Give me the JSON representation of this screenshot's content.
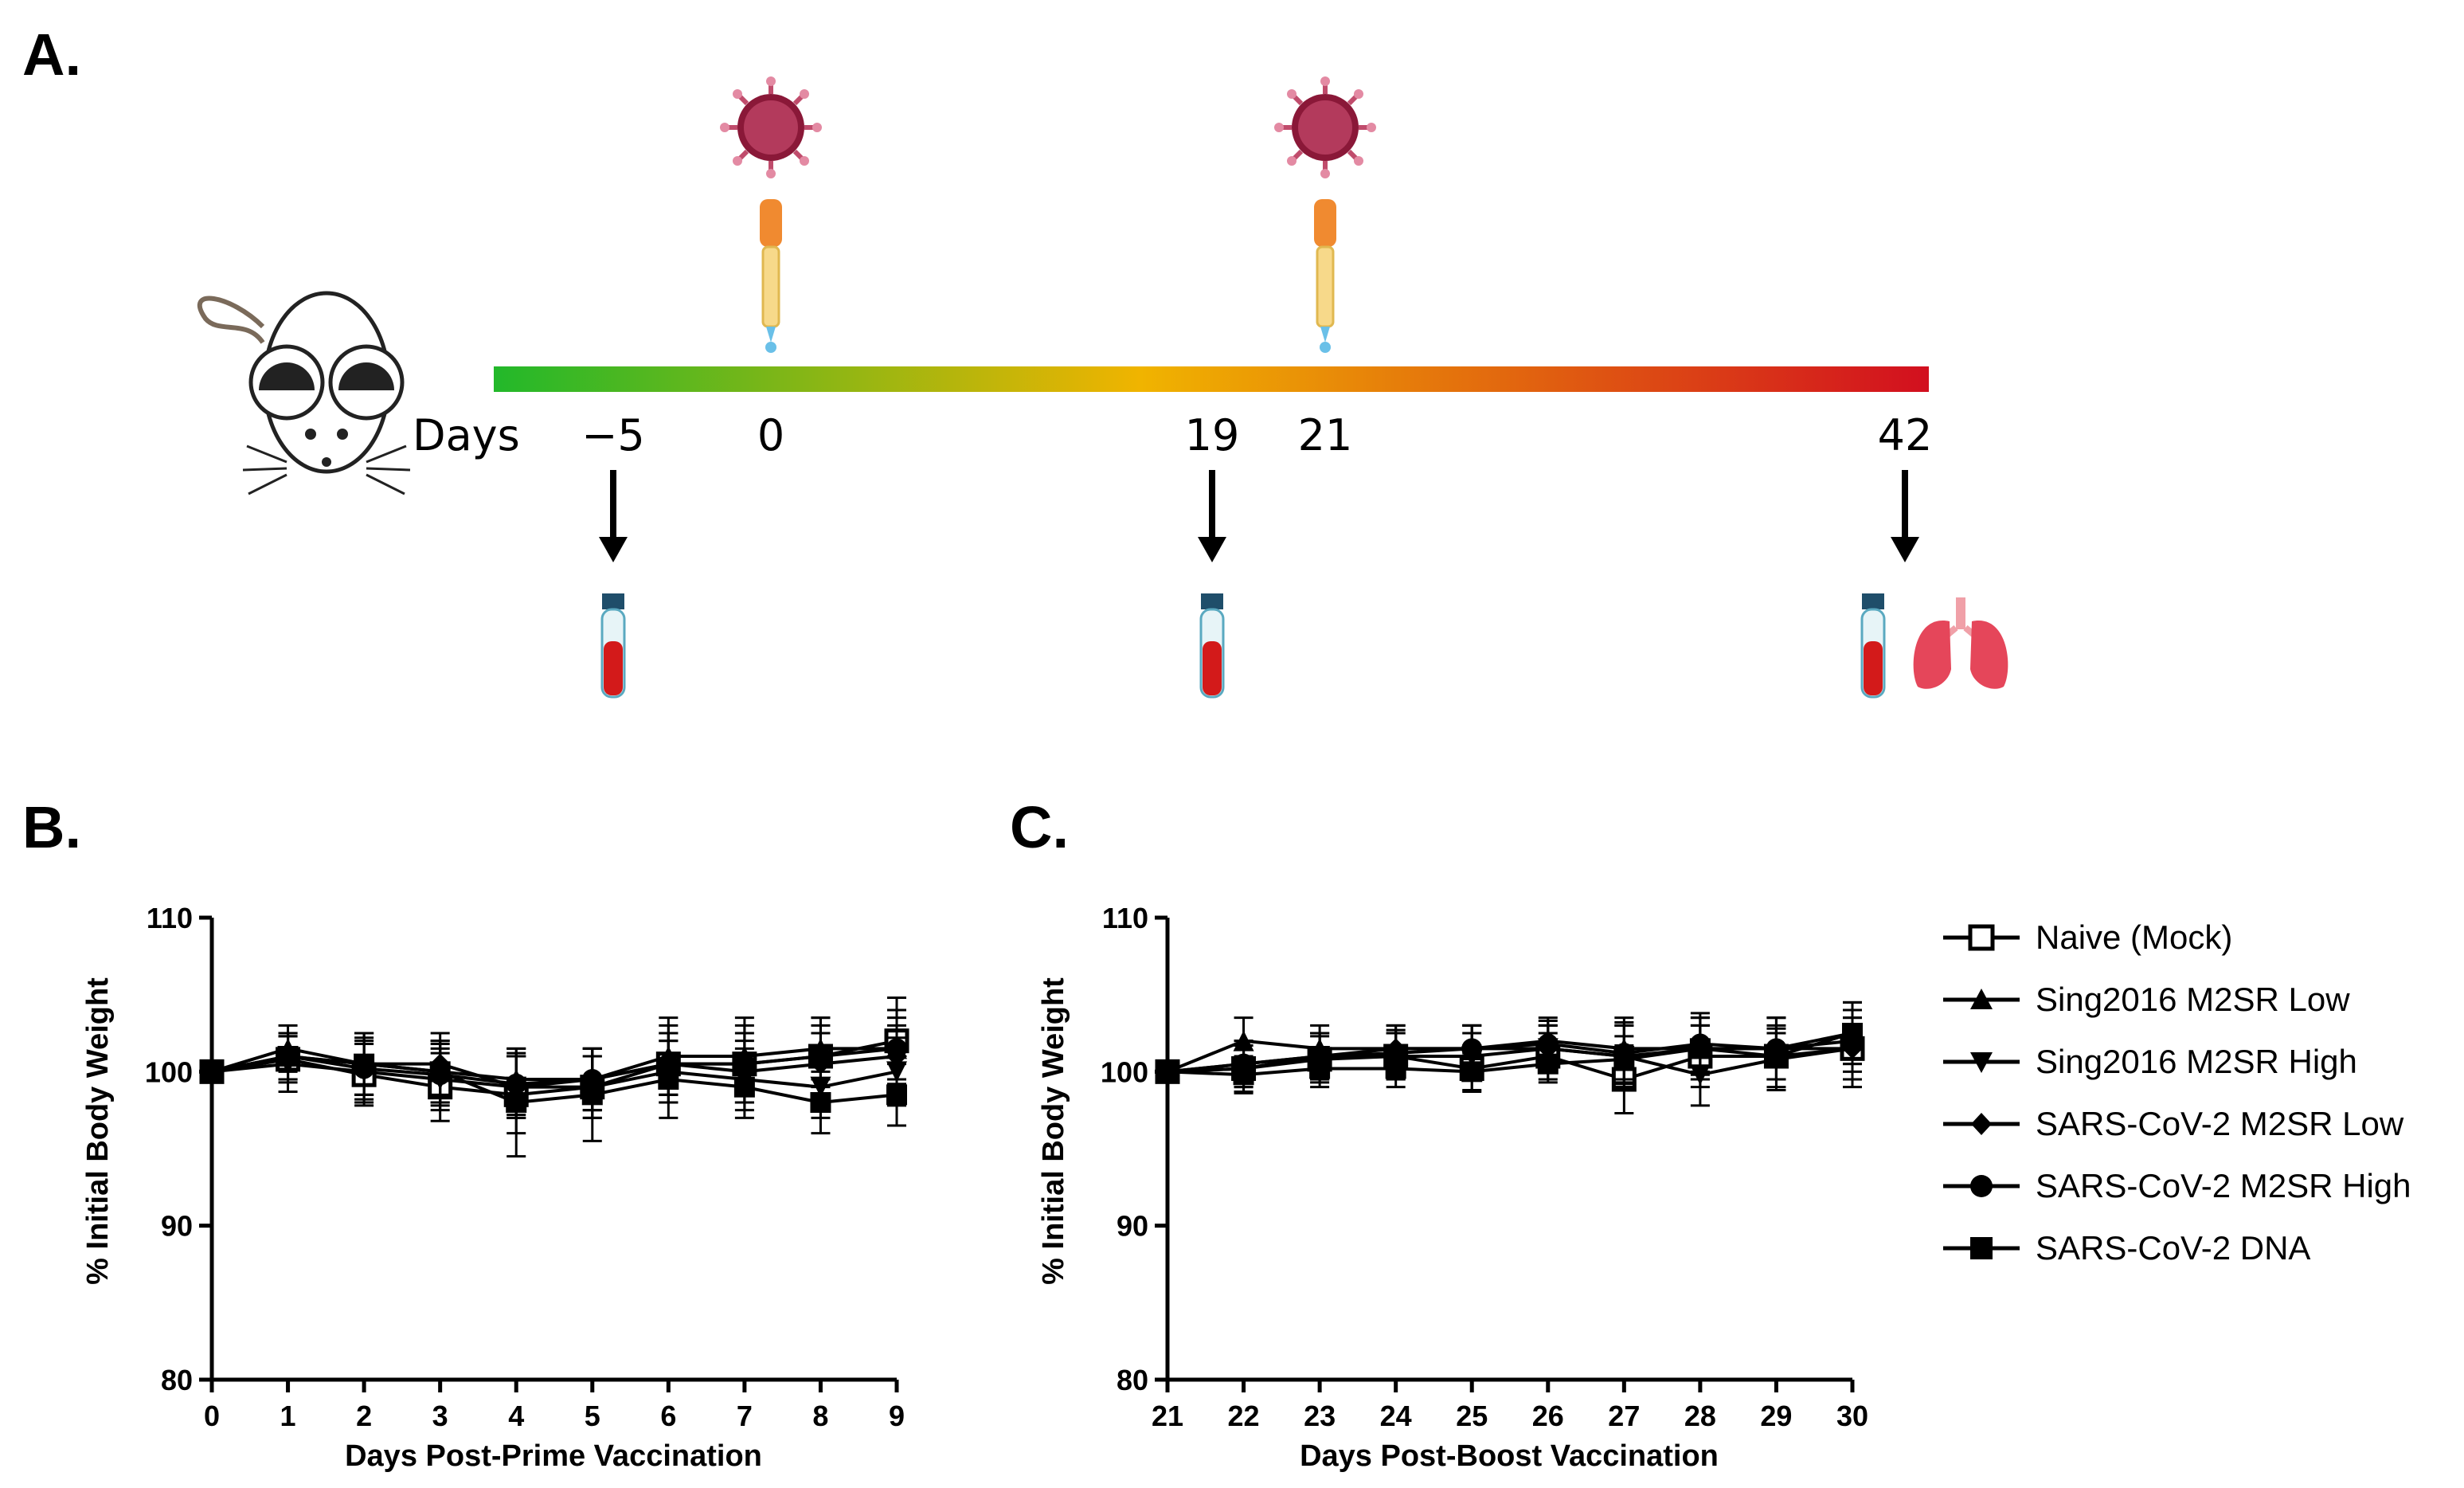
{
  "panels": {
    "a": "A.",
    "b": "B.",
    "c": "C."
  },
  "timeline": {
    "days_label": "Days",
    "days": [
      "−5",
      "0",
      "19",
      "21",
      "42"
    ],
    "colors": {
      "start": "#22b82a",
      "mid": "#f0b400",
      "end": "#d20f1f"
    }
  },
  "legend": [
    {
      "label": "Naive (Mock)",
      "marker": "open-square"
    },
    {
      "label": "Sing2016 M2SR Low",
      "marker": "triangle-up"
    },
    {
      "label": "Sing2016 M2SR High",
      "marker": "triangle-down"
    },
    {
      "label": "SARS-CoV-2 M2SR Low",
      "marker": "diamond"
    },
    {
      "label": "SARS-CoV-2 M2SR High",
      "marker": "circle"
    },
    {
      "label": "SARS-CoV-2 DNA",
      "marker": "square"
    }
  ],
  "chart_data": [
    {
      "type": "line",
      "panel": "B",
      "title": "",
      "xlabel": "Days Post-Prime Vaccination",
      "ylabel": "% Initial Body Weight",
      "x": [
        0,
        1,
        2,
        3,
        4,
        5,
        6,
        7,
        8,
        9
      ],
      "xlim": [
        0,
        9
      ],
      "ylim": [
        80,
        110
      ],
      "yticks": [
        80,
        90,
        100,
        110
      ],
      "series": [
        {
          "name": "Naive (Mock)",
          "marker": "open-square",
          "values": [
            100,
            100.8,
            99.8,
            99.0,
            98.5,
            99.0,
            100.5,
            100.5,
            101.0,
            102.0
          ],
          "errors": [
            0,
            1.5,
            2.0,
            2.2,
            2.5,
            2.0,
            2.5,
            2.5,
            2.5,
            2.8
          ]
        },
        {
          "name": "Sing2016 M2SR Low",
          "marker": "triangle-up",
          "values": [
            100,
            101.5,
            100.5,
            100.0,
            99.5,
            99.5,
            101.0,
            101.0,
            101.5,
            101.5
          ],
          "errors": [
            0,
            1.5,
            2.0,
            2.0,
            2.0,
            2.0,
            2.5,
            2.5,
            2.0,
            2.5
          ]
        },
        {
          "name": "Sing2016 M2SR High",
          "marker": "triangle-down",
          "values": [
            100,
            100.5,
            100.0,
            99.5,
            99.0,
            99.0,
            100.0,
            99.5,
            99.0,
            100.0
          ],
          "errors": [
            0,
            1.8,
            2.0,
            2.0,
            2.0,
            2.0,
            2.0,
            2.0,
            2.0,
            2.2
          ]
        },
        {
          "name": "SARS-CoV-2 M2SR Low",
          "marker": "diamond",
          "values": [
            100,
            101.0,
            100.5,
            100.5,
            99.0,
            99.5,
            100.5,
            100.0,
            100.5,
            101.0
          ],
          "errors": [
            0,
            1.5,
            2.0,
            2.0,
            2.0,
            2.0,
            2.0,
            2.0,
            2.0,
            2.0
          ]
        },
        {
          "name": "SARS-CoV-2 M2SR High",
          "marker": "circle",
          "values": [
            100,
            101.0,
            100.2,
            99.8,
            99.2,
            99.5,
            100.5,
            100.5,
            101.0,
            101.5
          ],
          "errors": [
            0,
            1.5,
            2.0,
            2.0,
            2.0,
            2.0,
            2.0,
            2.0,
            2.0,
            2.0
          ]
        },
        {
          "name": "SARS-CoV-2 DNA",
          "marker": "square",
          "values": [
            100,
            101.0,
            100.5,
            100.0,
            98.0,
            98.5,
            99.5,
            99.0,
            98.0,
            98.5
          ],
          "errors": [
            0,
            1.5,
            2.0,
            2.0,
            3.5,
            3.0,
            2.5,
            2.0,
            2.0,
            2.0
          ]
        }
      ]
    },
    {
      "type": "line",
      "panel": "C",
      "title": "",
      "xlabel": "Days Post-Boost Vaccination",
      "ylabel": "% Initial Body Weight",
      "x": [
        21,
        22,
        23,
        24,
        25,
        26,
        27,
        28,
        29,
        30
      ],
      "xlim": [
        21,
        30
      ],
      "ylim": [
        80,
        110
      ],
      "yticks": [
        80,
        90,
        100,
        110
      ],
      "series": [
        {
          "name": "Naive (Mock)",
          "marker": "open-square",
          "values": [
            100,
            100.2,
            100.8,
            101.0,
            100.2,
            101.0,
            99.5,
            101.0,
            101.0,
            101.5
          ],
          "errors": [
            0,
            1.5,
            1.5,
            1.5,
            1.5,
            1.5,
            2.2,
            2.0,
            2.0,
            2.5
          ]
        },
        {
          "name": "Sing2016 M2SR Low",
          "marker": "triangle-up",
          "values": [
            100,
            102.0,
            101.5,
            101.5,
            101.5,
            102.0,
            101.5,
            101.5,
            101.5,
            102.5
          ],
          "errors": [
            0,
            1.5,
            1.5,
            1.5,
            1.5,
            1.5,
            2.0,
            2.0,
            2.0,
            2.0
          ]
        },
        {
          "name": "Sing2016 M2SR High",
          "marker": "triangle-down",
          "values": [
            100,
            100.2,
            101.0,
            101.0,
            101.0,
            101.5,
            101.0,
            99.8,
            100.8,
            101.5
          ],
          "errors": [
            0,
            1.5,
            1.5,
            1.5,
            1.5,
            1.5,
            2.0,
            2.0,
            2.0,
            2.0
          ]
        },
        {
          "name": "SARS-CoV-2 M2SR Low",
          "marker": "diamond",
          "values": [
            100,
            100.5,
            101.0,
            101.5,
            101.5,
            101.5,
            101.0,
            101.5,
            101.5,
            101.5
          ],
          "errors": [
            0,
            1.5,
            1.5,
            1.5,
            1.5,
            1.5,
            2.0,
            2.0,
            2.0,
            2.0
          ]
        },
        {
          "name": "SARS-CoV-2 M2SR High",
          "marker": "circle",
          "values": [
            100,
            100.5,
            101.0,
            101.2,
            101.5,
            101.8,
            101.2,
            101.8,
            101.5,
            102.0
          ],
          "errors": [
            0,
            1.5,
            1.5,
            1.5,
            1.5,
            1.5,
            2.0,
            2.0,
            2.0,
            2.0
          ]
        },
        {
          "name": "SARS-CoV-2 DNA",
          "marker": "square",
          "values": [
            100,
            99.8,
            100.2,
            100.2,
            100.0,
            100.5,
            100.8,
            101.5,
            101.0,
            102.5
          ],
          "errors": [
            0,
            1.2,
            1.2,
            1.2,
            1.2,
            1.2,
            1.5,
            1.5,
            1.5,
            2.0
          ]
        }
      ]
    }
  ]
}
